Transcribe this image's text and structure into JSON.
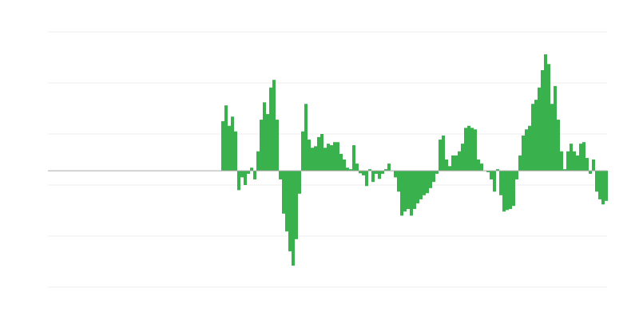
{
  "chart_data": {
    "type": "bar",
    "title": "",
    "xlabel": "",
    "ylabel": "",
    "ylim": [
      -2.28,
      2.72
    ],
    "gridlines": [
      2.72,
      1.72,
      0.72,
      -0.28,
      -1.28,
      -2.28
    ],
    "grid": true,
    "legend": "none",
    "bar_color": "#39b14c",
    "grid_color": "#ececec",
    "baseline_color": "#aaaaaa",
    "values": [
      0.97,
      1.28,
      0.88,
      1.06,
      0.77,
      -0.38,
      -0.13,
      -0.28,
      -0.06,
      0.06,
      -0.17,
      0.38,
      1.0,
      1.34,
      1.11,
      1.63,
      1.78,
      1.0,
      -0.17,
      -0.84,
      -1.19,
      -1.58,
      -1.86,
      -1.34,
      -0.45,
      0.77,
      1.31,
      0.61,
      0.45,
      0.48,
      0.66,
      0.72,
      0.45,
      0.53,
      0.5,
      0.56,
      0.56,
      0.33,
      0.22,
      0.06,
      0.03,
      0.5,
      0.14,
      -0.05,
      -0.09,
      -0.3,
      0.03,
      -0.22,
      -0.06,
      -0.16,
      -0.06,
      0.03,
      0.14,
      0,
      -0.13,
      -0.41,
      -0.88,
      -0.8,
      -0.75,
      -0.88,
      -0.75,
      -0.64,
      -0.56,
      -0.48,
      -0.44,
      -0.34,
      -0.22,
      -0.06,
      0.61,
      0.69,
      0.22,
      0.09,
      0.3,
      0.3,
      0.38,
      0.53,
      0.84,
      0.88,
      0.84,
      0.81,
      0.22,
      0.14,
      0,
      -0.03,
      -0.17,
      -0.41,
      0.03,
      -0.48,
      -0.8,
      -0.77,
      -0.75,
      -0.69,
      -0.17,
      0.3,
      0.69,
      0.81,
      0.88,
      1.31,
      1.39,
      1.63,
      1.97,
      2.28,
      2.09,
      1.31,
      1.66,
      1.0,
      0.38,
      0.03,
      0.38,
      0.53,
      0.38,
      0.3,
      0.53,
      0.56,
      0.25,
      -0.06,
      0.22,
      -0.41,
      -0.56,
      -0.66,
      -0.59
    ]
  }
}
